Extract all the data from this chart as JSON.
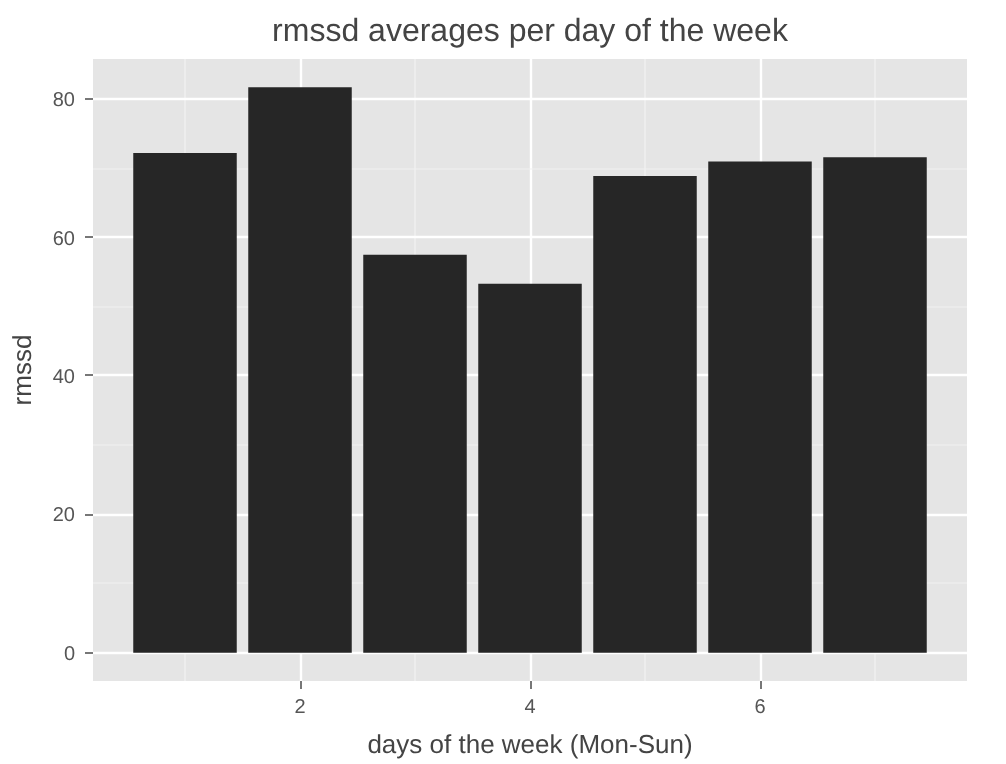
{
  "chart_data": {
    "type": "bar",
    "title": "rmssd averages per day of the week",
    "xlabel": "days of the week (Mon-Sun)",
    "ylabel": "rmssd",
    "x": [
      1,
      2,
      3,
      4,
      5,
      6,
      7
    ],
    "series": [
      {
        "color": "#262626",
        "values": [
          72.2,
          81.7,
          57.5,
          53.3,
          68.9,
          71.0,
          71.6
        ]
      }
    ],
    "xlim": [
      0.2,
      7.8
    ],
    "xticks": [
      2,
      4,
      6
    ],
    "ylim": [
      -4.1,
      85.8
    ],
    "yticks": [
      0,
      20,
      40,
      60,
      80
    ],
    "grid": true
  }
}
